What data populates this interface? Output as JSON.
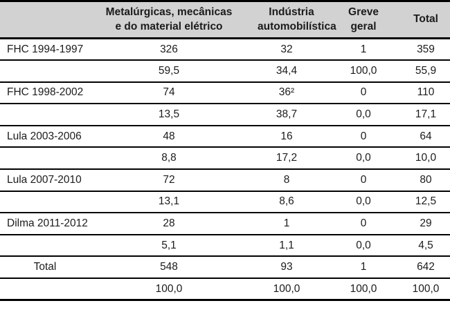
{
  "table": {
    "header": {
      "col1": "",
      "col2_lines": [
        "Metalúrgicas, mecânicas",
        "e do material elétrico"
      ],
      "col3_lines": [
        "Indústria",
        "automobilística"
      ],
      "col4_lines": [
        "Greve",
        "geral"
      ],
      "col5": "Total"
    },
    "rows": [
      {
        "label": "FHC 1994-1997",
        "values": [
          "326",
          "32",
          "1",
          "359"
        ]
      },
      {
        "label": "",
        "values": [
          "59,5",
          "34,4",
          "100,0",
          "55,9"
        ]
      },
      {
        "label": "FHC 1998-2002",
        "values": [
          "74",
          "36²",
          "0",
          "110"
        ]
      },
      {
        "label": "",
        "values": [
          "13,5",
          "38,7",
          "0,0",
          "17,1"
        ]
      },
      {
        "label": "Lula 2003-2006",
        "values": [
          "48",
          "16",
          "0",
          "64"
        ]
      },
      {
        "label": "",
        "values": [
          "8,8",
          "17,2",
          "0,0",
          "10,0"
        ]
      },
      {
        "label": "Lula 2007-2010",
        "values": [
          "72",
          "8",
          "0",
          "80"
        ]
      },
      {
        "label": "",
        "values": [
          "13,1",
          "8,6",
          "0,0",
          "12,5"
        ]
      },
      {
        "label": "Dilma 2011-2012",
        "values": [
          "28",
          "1",
          "0",
          "29"
        ]
      },
      {
        "label": "",
        "values": [
          "5,1",
          "1,1",
          "0,0",
          "4,5"
        ]
      },
      {
        "label": "Total",
        "values": [
          "548",
          "93",
          "1",
          "642"
        ]
      },
      {
        "label": "",
        "values": [
          "100,0",
          "100,0",
          "100,0",
          "100,0"
        ]
      }
    ]
  },
  "colors": {
    "header_background": "#d2d2d2",
    "border": "#000000",
    "text": "#1b1b1b"
  }
}
